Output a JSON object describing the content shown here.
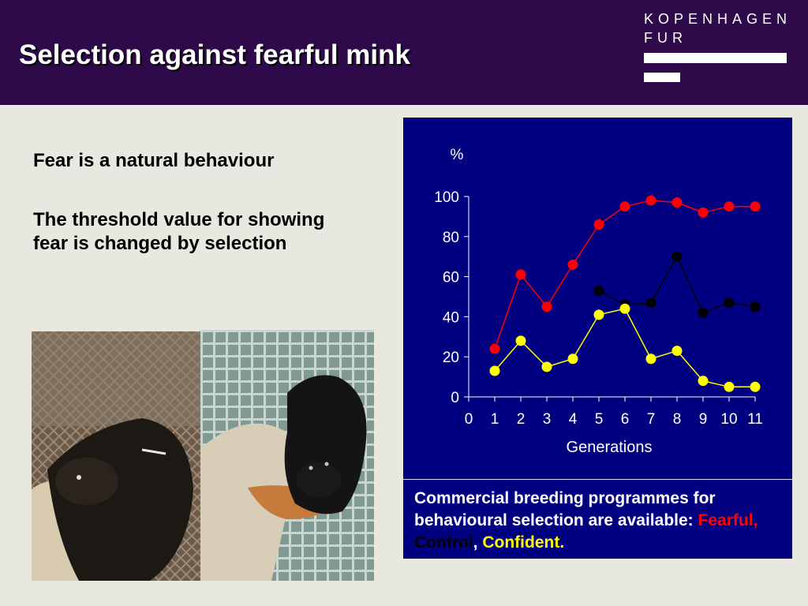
{
  "header": {
    "title": "Selection against fearful mink",
    "logo_line1": "KOPENHAGEN",
    "logo_line2": "FUR"
  },
  "bullets": [
    "Fear is a natural behaviour",
    "The threshold value for showing fear is changed by selection"
  ],
  "caption": {
    "main": "Commercial breeding programmes for behavioural selection are available:",
    "fearful": "Fearful,",
    "control": "Control",
    "comma": ",",
    "confident": "Confident."
  },
  "colors": {
    "header_bg": "#2e0a4a",
    "chart_bg": "#000080",
    "fearful": "#ff0000",
    "control": "#000000",
    "confident": "#ffff00"
  },
  "chart_data": {
    "type": "line",
    "ylabel": "%",
    "xlabel": "Generations",
    "xlim": [
      0,
      11
    ],
    "ylim": [
      0,
      100
    ],
    "xticks": [
      0,
      1,
      2,
      3,
      4,
      5,
      6,
      7,
      8,
      9,
      10,
      11
    ],
    "yticks": [
      0,
      20,
      40,
      60,
      80,
      100
    ],
    "grid": false,
    "series": [
      {
        "color": "#ff0000",
        "x": [
          1,
          2,
          3,
          4,
          5,
          6,
          7,
          8,
          9,
          10,
          11
        ],
        "y": [
          24,
          61,
          45,
          66,
          86,
          95,
          98,
          97,
          92,
          95,
          95
        ]
      },
      {
        "color": "#000000",
        "x": [
          5,
          6,
          7,
          8,
          9,
          10,
          11
        ],
        "y": [
          53,
          46,
          47,
          70,
          42,
          47,
          45
        ]
      },
      {
        "color": "#ffff00",
        "x": [
          1,
          2,
          3,
          4,
          5,
          6,
          7,
          8,
          9,
          10,
          11
        ],
        "y": [
          13,
          28,
          15,
          19,
          41,
          44,
          19,
          23,
          8,
          5,
          5
        ]
      }
    ]
  }
}
